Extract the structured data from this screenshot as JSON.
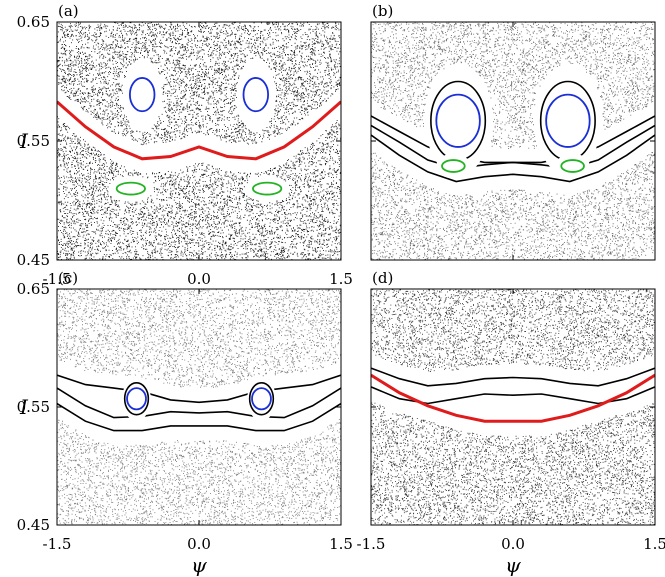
{
  "figure": {
    "ylabel": "I",
    "xlabel": "ψ"
  },
  "chart_data": [
    {
      "panel": "(a)",
      "type": "scatter",
      "xlim": [
        -1.5,
        1.5
      ],
      "ylim": [
        0.45,
        0.65
      ],
      "yticks": [
        "0.65",
        "0.55",
        "0.45"
      ],
      "xticks": [
        "-1.5",
        "0.0",
        "1.5"
      ],
      "ylabel": "I",
      "xlabel": "",
      "chaos_density": 0.85,
      "chaos_tone": "#111111",
      "islands": [
        {
          "cx": -0.6,
          "cy": 0.589,
          "rx": 0.13,
          "ry": 0.014,
          "color": "#1a2fd6"
        },
        {
          "cx": 0.6,
          "cy": 0.589,
          "rx": 0.13,
          "ry": 0.014,
          "color": "#1a2fd6"
        },
        {
          "cx": -0.72,
          "cy": 0.51,
          "rx": 0.15,
          "ry": 0.005,
          "color": "#22b322"
        },
        {
          "cx": 0.72,
          "cy": 0.51,
          "rx": 0.15,
          "ry": 0.005,
          "color": "#22b322"
        }
      ],
      "curves": [
        {
          "color": "#e01b1b",
          "x": [
            -1.5,
            -1.2,
            -0.9,
            -0.6,
            -0.3,
            0.0,
            0.3,
            0.6,
            0.9,
            1.2,
            1.5
          ],
          "y": [
            0.583,
            0.562,
            0.545,
            0.535,
            0.537,
            0.545,
            0.537,
            0.535,
            0.545,
            0.562,
            0.583
          ]
        }
      ]
    },
    {
      "panel": "(b)",
      "type": "scatter",
      "xlim": [
        -1.5,
        1.5
      ],
      "ylim": [
        0.45,
        0.65
      ],
      "yticks": [],
      "xticks": [],
      "ylabel": "",
      "xlabel": "",
      "chaos_density": 0.7,
      "chaos_tone": "#666666",
      "islands": [
        {
          "cx": -0.58,
          "cy": 0.567,
          "rx": 0.23,
          "ry": 0.022,
          "color": "#1a2fd6"
        },
        {
          "cx": 0.58,
          "cy": 0.567,
          "rx": 0.23,
          "ry": 0.022,
          "color": "#1a2fd6"
        },
        {
          "cx": -0.63,
          "cy": 0.529,
          "rx": 0.12,
          "ry": 0.005,
          "color": "#22b322"
        },
        {
          "cx": 0.63,
          "cy": 0.529,
          "rx": 0.12,
          "ry": 0.005,
          "color": "#22b322"
        }
      ],
      "curves": [
        {
          "color": "#000000",
          "x": [
            -1.5,
            -1.2,
            -0.9,
            -0.6,
            -0.3,
            0.0,
            0.3,
            0.6,
            0.9,
            1.2,
            1.5
          ],
          "y": [
            0.571,
            0.558,
            0.545,
            0.537,
            0.532,
            0.532,
            0.532,
            0.537,
            0.545,
            0.558,
            0.571
          ]
        },
        {
          "color": "#000000",
          "x": [
            -1.5,
            -1.2,
            -0.9,
            -0.6,
            -0.3,
            0.0,
            0.3,
            0.6,
            0.9,
            1.2,
            1.5
          ],
          "y": [
            0.563,
            0.549,
            0.534,
            0.527,
            0.53,
            0.532,
            0.53,
            0.527,
            0.534,
            0.549,
            0.563
          ]
        },
        {
          "color": "#000000",
          "x": [
            -1.5,
            -1.2,
            -0.9,
            -0.6,
            -0.3,
            0.0,
            0.3,
            0.6,
            0.9,
            1.2,
            1.5
          ],
          "y": [
            0.555,
            0.538,
            0.524,
            0.516,
            0.52,
            0.522,
            0.52,
            0.516,
            0.524,
            0.538,
            0.555
          ]
        }
      ]
    },
    {
      "panel": "(c)",
      "type": "scatter",
      "xlim": [
        -1.5,
        1.5
      ],
      "ylim": [
        0.45,
        0.65
      ],
      "yticks": [
        "0.65",
        "0.55",
        "0.45"
      ],
      "xticks": [
        "-1.5",
        "0.0",
        "1.5"
      ],
      "ylabel": "I",
      "xlabel": "ψ",
      "chaos_density": 0.65,
      "chaos_tone": "#777777",
      "islands": [
        {
          "cx": -0.66,
          "cy": 0.557,
          "rx": 0.1,
          "ry": 0.009,
          "color": "#1a2fd6"
        },
        {
          "cx": 0.66,
          "cy": 0.557,
          "rx": 0.1,
          "ry": 0.009,
          "color": "#1a2fd6"
        }
      ],
      "curves": [
        {
          "color": "#000000",
          "x": [
            -1.5,
            -1.2,
            -0.9,
            -0.6,
            -0.3,
            0.0,
            0.3,
            0.6,
            0.9,
            1.2,
            1.5
          ],
          "y": [
            0.577,
            0.569,
            0.566,
            0.563,
            0.556,
            0.554,
            0.556,
            0.563,
            0.566,
            0.569,
            0.577
          ]
        },
        {
          "color": "#000000",
          "x": [
            -1.5,
            -1.2,
            -0.9,
            -0.6,
            -0.3,
            0.0,
            0.3,
            0.6,
            0.9,
            1.2,
            1.5
          ],
          "y": [
            0.566,
            0.551,
            0.541,
            0.542,
            0.546,
            0.545,
            0.546,
            0.542,
            0.541,
            0.551,
            0.566
          ]
        },
        {
          "color": "#000000",
          "x": [
            -1.5,
            -1.2,
            -0.9,
            -0.6,
            -0.3,
            0.0,
            0.3,
            0.6,
            0.9,
            1.2,
            1.5
          ],
          "y": [
            0.553,
            0.538,
            0.53,
            0.53,
            0.534,
            0.534,
            0.534,
            0.53,
            0.53,
            0.538,
            0.553
          ]
        }
      ]
    },
    {
      "panel": "(d)",
      "type": "scatter",
      "xlim": [
        -1.5,
        1.5
      ],
      "ylim": [
        0.45,
        0.65
      ],
      "yticks": [],
      "xticks": [
        "-1.5",
        "0.0",
        "1.5"
      ],
      "ylabel": "",
      "xlabel": "ψ",
      "chaos_density": 0.8,
      "chaos_tone": "#333333",
      "islands": [],
      "curves": [
        {
          "color": "#000000",
          "x": [
            -1.5,
            -1.2,
            -0.9,
            -0.6,
            -0.3,
            0.0,
            0.3,
            0.6,
            0.9,
            1.2,
            1.5
          ],
          "y": [
            0.583,
            0.574,
            0.568,
            0.57,
            0.574,
            0.575,
            0.574,
            0.57,
            0.568,
            0.574,
            0.583
          ]
        },
        {
          "color": "#000000",
          "x": [
            -1.5,
            -1.2,
            -0.9,
            -0.6,
            -0.3,
            0.0,
            0.3,
            0.6,
            0.9,
            1.2,
            1.5
          ],
          "y": [
            0.567,
            0.557,
            0.553,
            0.557,
            0.561,
            0.56,
            0.561,
            0.557,
            0.553,
            0.557,
            0.567
          ]
        },
        {
          "color": "#e01b1b",
          "x": [
            -1.5,
            -1.2,
            -0.9,
            -0.6,
            -0.3,
            0.0,
            0.3,
            0.6,
            0.9,
            1.2,
            1.5
          ],
          "y": [
            0.577,
            0.562,
            0.551,
            0.543,
            0.538,
            0.538,
            0.538,
            0.543,
            0.551,
            0.562,
            0.577
          ]
        }
      ]
    }
  ]
}
